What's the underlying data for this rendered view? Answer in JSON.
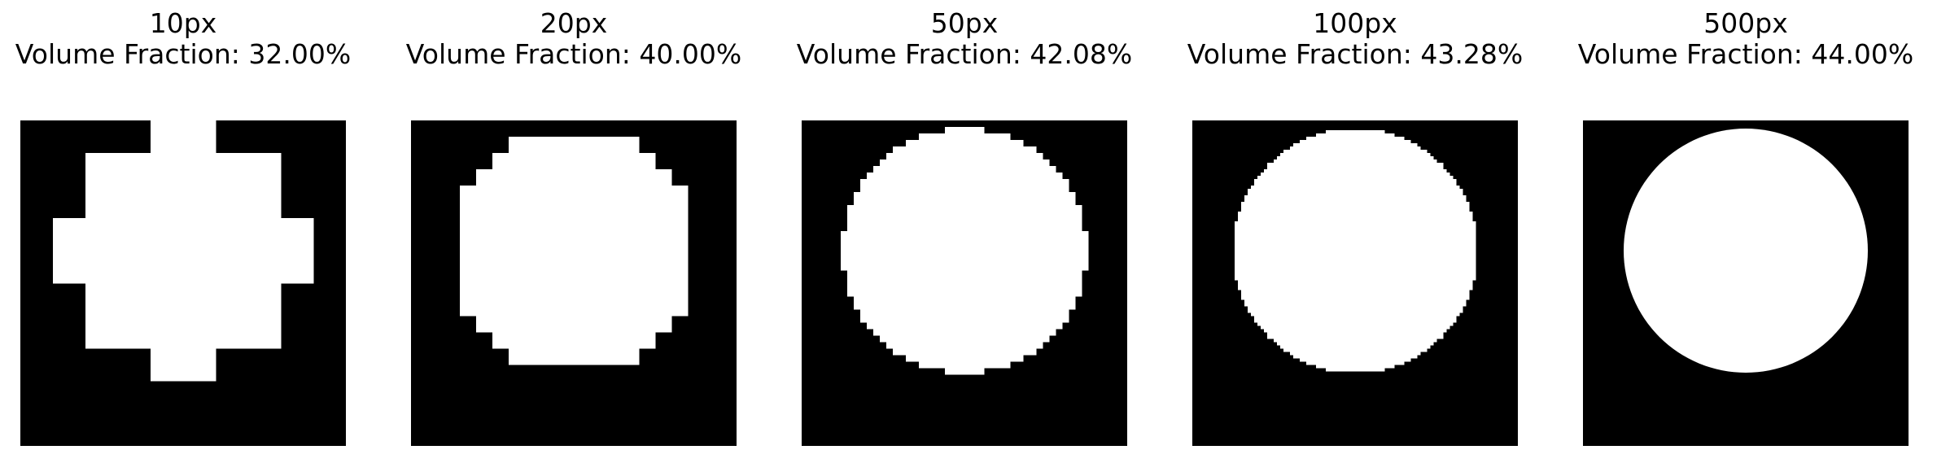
{
  "panels": [
    {
      "resolution": 10,
      "resolution_label": "10px",
      "volume_fraction_label": "Volume Fraction: 32.00%"
    },
    {
      "resolution": 20,
      "resolution_label": "20px",
      "volume_fraction_label": "Volume Fraction: 40.00%"
    },
    {
      "resolution": 50,
      "resolution_label": "50px",
      "volume_fraction_label": "Volume Fraction: 42.08%"
    },
    {
      "resolution": 100,
      "resolution_label": "100px",
      "volume_fraction_label": "Volume Fraction: 43.28%"
    },
    {
      "resolution": 500,
      "resolution_label": "500px",
      "volume_fraction_label": "Volume Fraction: 44.00%"
    }
  ],
  "colors": {
    "background": "#000000",
    "foreground": "#ffffff",
    "text": "#000000"
  }
}
